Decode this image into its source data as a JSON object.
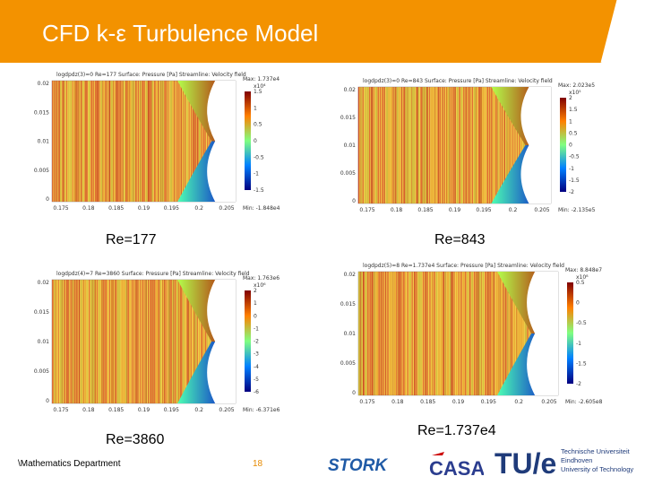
{
  "slide": {
    "title": "CFD k-ε Turbulence Model",
    "accent_color": "#f39200",
    "footer_department": "\\Mathematics Department",
    "page_number": "18"
  },
  "panels": [
    {
      "caption": "Re=177",
      "plot_title": "logdpdz(3)=0 Re=177 Surface: Pressure [Pa] Streamline: Velocity field",
      "max_label": "Max: 1.737e4",
      "min_label": "Min: -1.848e4",
      "scale": "x10⁴",
      "colorbar_ticks": [
        "1.5",
        "1",
        "0.5",
        "0",
        "-0.5",
        "-1",
        "-1.5"
      ],
      "y_ticks": [
        "0.02",
        "0.015",
        "0.01",
        "0.005",
        "0"
      ],
      "x_ticks": [
        "0.175",
        "0.18",
        "0.185",
        "0.19",
        "0.195",
        "0.2",
        "0.205"
      ]
    },
    {
      "caption": "Re=843",
      "plot_title": "logdpdz(3)=0 Re=843 Surface: Pressure [Pa] Streamline: Velocity field",
      "max_label": "Max: 2.023e5",
      "min_label": "Min: -2.135e5",
      "scale": "x10⁵",
      "colorbar_ticks": [
        "2",
        "1.5",
        "1",
        "0.5",
        "0",
        "-0.5",
        "-1",
        "-1.5",
        "-2"
      ],
      "y_ticks": [
        "0.02",
        "0.015",
        "0.01",
        "0.005",
        "0"
      ],
      "x_ticks": [
        "0.175",
        "0.18",
        "0.185",
        "0.19",
        "0.195",
        "0.2",
        "0.205"
      ]
    },
    {
      "caption": "Re=3860",
      "plot_title": "logdpdz(4)=7 Re=3860 Surface: Pressure [Pa] Streamline: Velocity field",
      "max_label": "Max: 1.763e6",
      "min_label": "Min: -6.371e6",
      "scale": "x10⁶",
      "colorbar_ticks": [
        "2",
        "1",
        "0",
        "-1",
        "-2",
        "-3",
        "-4",
        "-5",
        "-6"
      ],
      "y_ticks": [
        "0.02",
        "0.015",
        "0.01",
        "0.005",
        "0"
      ],
      "x_ticks": [
        "0.175",
        "0.18",
        "0.185",
        "0.19",
        "0.195",
        "0.2",
        "0.205"
      ]
    },
    {
      "caption": "Re=1.737e4",
      "plot_title": "logdpdz(5)=8 Re=1.737e4 Surface: Pressure [Pa] Streamline: Velocity field",
      "max_label": "Max: 8.848e7",
      "min_label": "Min: -2.605e8",
      "scale": "x10⁸",
      "colorbar_ticks": [
        "0.5",
        "0",
        "-0.5",
        "-1",
        "-1.5",
        "-2"
      ],
      "y_ticks": [
        "0.02",
        "0.015",
        "0.01",
        "0.005",
        "0"
      ],
      "x_ticks": [
        "0.175",
        "0.18",
        "0.185",
        "0.19",
        "0.195",
        "0.2",
        "0.205"
      ]
    }
  ],
  "logos": {
    "stork": "STORK",
    "casa": "CASA",
    "tue": "TU/e",
    "tue_text": [
      "Technische Universiteit",
      "Eindhoven",
      "University of Technology"
    ]
  }
}
